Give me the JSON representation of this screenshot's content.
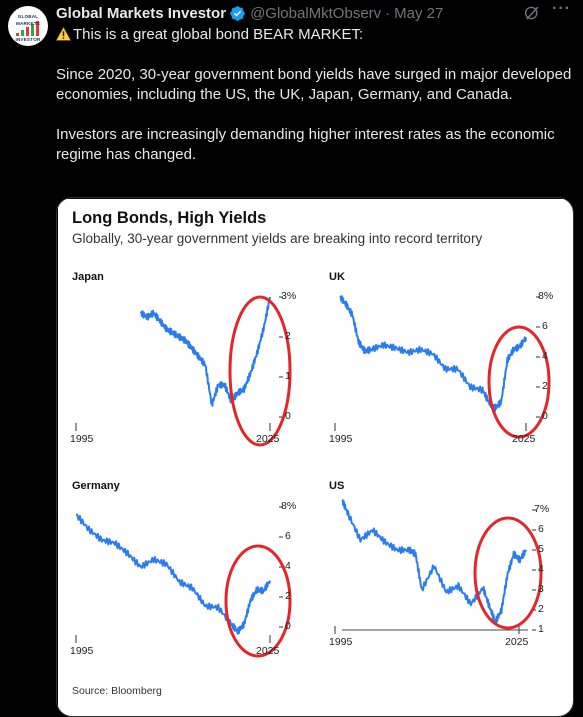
{
  "tweet": {
    "author_name": "Global Markets Investor",
    "handle": "@GlobalMktObserv",
    "separator": "·",
    "date": "May 27",
    "more": "···",
    "avatar_text": [
      "GLOBAL",
      "MARKETS",
      "INVESTOR"
    ],
    "line1": "This is a great global bond BEAR MARKET:",
    "paragraph2": "Since 2020, 30-year government bond yields have surged in major developed economies, including the US, the UK, Japan, Germany, and Canada.",
    "paragraph3": "Investors are increasingly demanding higher interest rates as the economic regime has changed."
  },
  "colors": {
    "accent": "#1d9bf0",
    "warning": "#ffcc4d",
    "series": "#2b7cf1",
    "circle": "#e3262a"
  },
  "icons": {
    "verified": "verified-badge-icon",
    "warning": "warning-icon",
    "grok": "grok-icon",
    "more": "more-icon"
  },
  "card": {
    "title": "Long Bonds, High Yields",
    "subtitle": "Globally, 30-year government yields are breaking into record territory",
    "source": "Source: Bloomberg"
  },
  "chart_data": [
    {
      "type": "line",
      "title": "Japan",
      "x_ticks": [
        "1995",
        "2025"
      ],
      "y_ticks": [
        "3%",
        "2",
        "1",
        "0"
      ],
      "ylim": [
        0,
        3
      ],
      "series": [
        {
          "x": [
            2005,
            2006,
            2007,
            2008,
            2009,
            2010,
            2011,
            2012,
            2013,
            2014,
            2015,
            2016,
            2017,
            2018,
            2019,
            2020,
            2021,
            2022,
            2023,
            2024,
            2025
          ],
          "values": [
            2.6,
            2.5,
            2.6,
            2.4,
            2.2,
            2.1,
            2.0,
            1.9,
            1.7,
            1.5,
            1.3,
            0.3,
            0.8,
            0.8,
            0.4,
            0.6,
            0.7,
            1.1,
            1.6,
            2.2,
            3.0
          ]
        }
      ]
    },
    {
      "type": "line",
      "title": "UK",
      "x_ticks": [
        "1995",
        "2025"
      ],
      "y_ticks": [
        "8%",
        "6",
        "4",
        "2",
        "0"
      ],
      "ylim": [
        0,
        8
      ],
      "series": [
        {
          "x": [
            1995,
            1996,
            1997,
            1998,
            1999,
            2000,
            2002,
            2004,
            2006,
            2008,
            2010,
            2012,
            2014,
            2016,
            2018,
            2019,
            2020,
            2021,
            2022,
            2023,
            2024,
            2025
          ],
          "values": [
            8.0,
            7.5,
            6.8,
            5.0,
            4.4,
            4.5,
            4.8,
            4.6,
            4.3,
            4.5,
            4.2,
            3.2,
            3.2,
            2.0,
            1.8,
            1.0,
            0.6,
            1.0,
            3.8,
            4.5,
            4.7,
            5.3
          ]
        }
      ]
    },
    {
      "type": "line",
      "title": "Germany",
      "x_ticks": [
        "1995",
        "2025"
      ],
      "y_ticks": [
        "8%",
        "6",
        "4",
        "2",
        "0"
      ],
      "ylim": [
        0,
        8
      ],
      "series": [
        {
          "x": [
            1995,
            1997,
            1999,
            2001,
            2003,
            2005,
            2007,
            2009,
            2011,
            2013,
            2015,
            2017,
            2019,
            2020,
            2021,
            2022,
            2023,
            2024,
            2025
          ],
          "values": [
            7.5,
            6.5,
            5.8,
            5.6,
            4.9,
            4.0,
            4.5,
            4.2,
            3.0,
            2.6,
            1.4,
            1.3,
            0.2,
            -0.3,
            0.2,
            1.8,
            2.5,
            2.4,
            3.1
          ]
        }
      ]
    },
    {
      "type": "line",
      "title": "US",
      "x_ticks": [
        "1995",
        "2025"
      ],
      "y_ticks": [
        "7%",
        "6",
        "5",
        "4",
        "3",
        "2",
        "1"
      ],
      "ylim": [
        1,
        7
      ],
      "series": [
        {
          "x": [
            1995,
            1996,
            1998,
            2000,
            2002,
            2004,
            2006,
            2007,
            2008,
            2010,
            2012,
            2014,
            2016,
            2018,
            2019,
            2020,
            2021,
            2022,
            2023,
            2024,
            2025
          ],
          "values": [
            7.5,
            6.8,
            5.5,
            6.0,
            5.4,
            5.0,
            5.0,
            4.8,
            3.0,
            4.2,
            2.9,
            3.2,
            2.3,
            3.1,
            2.2,
            1.4,
            2.0,
            3.8,
            4.8,
            4.5,
            5.0
          ]
        }
      ]
    }
  ]
}
